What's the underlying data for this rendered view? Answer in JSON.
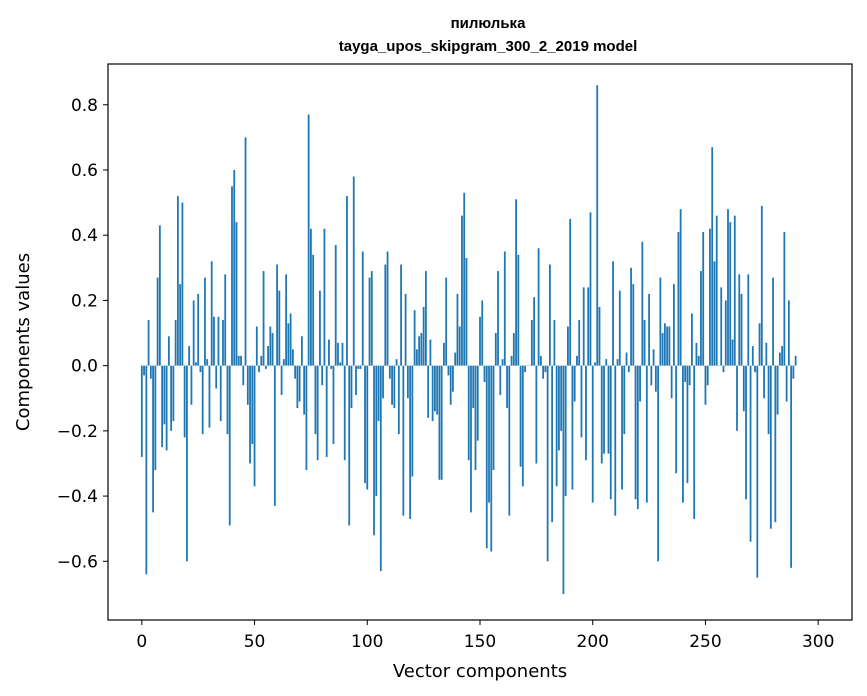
{
  "chart_data": {
    "type": "bar",
    "title": "пилюлька",
    "subtitle": "tayga_upos_skipgram_300_2_2019 model",
    "xlabel": "Vector components",
    "ylabel": "Components values",
    "xlim": [
      -15,
      315
    ],
    "ylim": [
      -0.78,
      0.925
    ],
    "xticks": [
      0,
      50,
      100,
      150,
      200,
      250,
      300
    ],
    "yticks": [
      -0.6,
      -0.4,
      -0.2,
      0.0,
      0.2,
      0.4,
      0.6,
      0.8
    ],
    "ytick_labels": [
      "−0.6",
      "−0.4",
      "−0.2",
      "0.0",
      "0.2",
      "0.4",
      "0.6",
      "0.8"
    ],
    "xtick_labels": [
      "0",
      "50",
      "100",
      "150",
      "200",
      "250",
      "300"
    ],
    "grid": false,
    "bar_color": "#1f77b4",
    "values": [
      -0.28,
      -0.03,
      -0.64,
      0.14,
      -0.04,
      -0.45,
      -0.32,
      0.27,
      0.43,
      -0.25,
      -0.18,
      -0.26,
      0.09,
      -0.2,
      -0.17,
      0.14,
      0.52,
      0.25,
      0.5,
      -0.22,
      -0.6,
      0.06,
      -0.12,
      0.2,
      0.01,
      0.22,
      -0.02,
      -0.21,
      0.27,
      0.02,
      -0.19,
      0.32,
      0.15,
      -0.07,
      0.15,
      -0.17,
      0.14,
      0.28,
      -0.21,
      -0.49,
      0.55,
      0.6,
      0.44,
      0.03,
      0.03,
      -0.06,
      0.7,
      -0.12,
      -0.3,
      -0.24,
      -0.37,
      0.12,
      -0.02,
      0.03,
      0.29,
      -0.01,
      0.06,
      0.12,
      0.1,
      -0.43,
      0.31,
      0.23,
      -0.09,
      0.02,
      0.28,
      0.13,
      0.16,
      0.05,
      -0.04,
      -0.13,
      -0.11,
      0.09,
      -0.15,
      -0.32,
      0.77,
      0.42,
      0.34,
      -0.21,
      -0.29,
      0.23,
      -0.06,
      0.42,
      -0.28,
      0.08,
      -0.01,
      -0.24,
      0.37,
      0.07,
      0.01,
      0.07,
      -0.29,
      0.52,
      -0.49,
      -0.13,
      0.58,
      -0.09,
      -0.01,
      -0.01,
      0.35,
      -0.36,
      -0.38,
      0.27,
      0.29,
      -0.52,
      -0.4,
      -0.17,
      -0.63,
      -0.1,
      0.31,
      0.35,
      -0.04,
      -0.12,
      -0.13,
      0.02,
      -0.21,
      0.31,
      -0.46,
      0.22,
      -0.1,
      -0.47,
      -0.34,
      0.17,
      0.05,
      0.09,
      0.1,
      0.18,
      0.29,
      -0.16,
      0.08,
      -0.17,
      -0.14,
      -0.15,
      -0.35,
      -0.35,
      0.07,
      0.27,
      -0.03,
      -0.12,
      -0.08,
      0.04,
      0.22,
      0.12,
      0.46,
      0.53,
      0.33,
      -0.29,
      -0.45,
      -0.13,
      -0.32,
      -0.23,
      0.15,
      0.2,
      -0.05,
      -0.56,
      -0.42,
      -0.57,
      -0.32,
      0.1,
      0.29,
      -0.09,
      0.02,
      0.35,
      -0.13,
      -0.46,
      0.03,
      0.1,
      0.51,
      0.34,
      -0.31,
      -0.37,
      -0.02,
      0.0,
      0.0,
      0.14,
      0.21,
      -0.3,
      0.36,
      0.03,
      -0.04,
      -0.02,
      -0.6,
      0.31,
      -0.48,
      0.14,
      -0.37,
      -0.26,
      -0.2,
      -0.7,
      -0.4,
      0.12,
      0.45,
      -0.38,
      -0.11,
      0.03,
      0.14,
      -0.22,
      0.24,
      -0.29,
      0.24,
      0.47,
      -0.42,
      0.01,
      0.86,
      0.18,
      -0.3,
      -0.27,
      0.02,
      -0.27,
      -0.41,
      0.32,
      -0.46,
      0.02,
      0.23,
      -0.38,
      -0.21,
      0.04,
      -0.02,
      0.3,
      0.25,
      -0.41,
      -0.44,
      -0.11,
      0.38,
      0.14,
      -0.42,
      0.22,
      -0.06,
      0.05,
      -0.08,
      -0.6,
      0.27,
      0.1,
      0.13,
      0.12,
      0.12,
      -0.1,
      0.25,
      -0.33,
      0.41,
      0.48,
      -0.42,
      -0.05,
      -0.36,
      -0.06,
      0.16,
      -0.47,
      0.07,
      0.03,
      0.29,
      0.41,
      -0.12,
      -0.06,
      0.42,
      0.67,
      0.32,
      0.46,
      0.0,
      0.24,
      -0.02,
      0.2,
      0.48,
      0.44,
      0.08,
      0.46,
      -0.2,
      0.28,
      0.22,
      -0.14,
      -0.41,
      0.28,
      -0.54,
      0.06,
      -0.02,
      -0.65,
      0.13,
      0.49,
      -0.1,
      0.07,
      -0.21,
      -0.5,
      0.27,
      -0.48,
      -0.15,
      0.04,
      0.06,
      0.41,
      -0.11,
      0.2,
      -0.62,
      -0.04,
      0.03
    ]
  }
}
